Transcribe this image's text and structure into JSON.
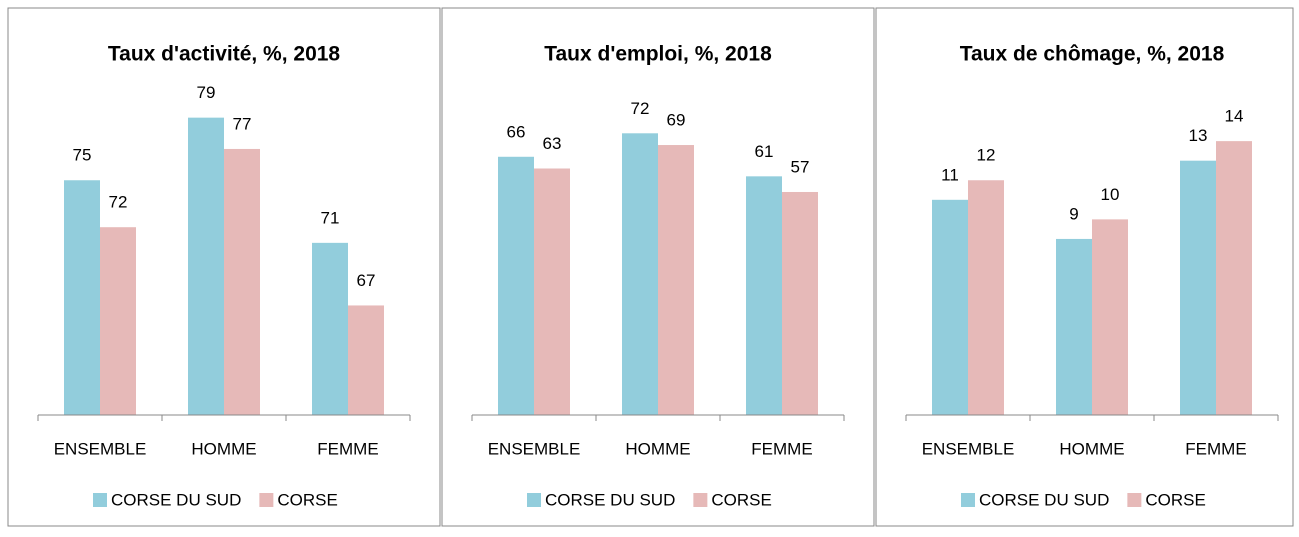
{
  "chart_data": [
    {
      "type": "bar",
      "title": "Taux d'activité, %, 2018",
      "categories": [
        "ENSEMBLE",
        "HOMME",
        "FEMME"
      ],
      "series": [
        {
          "name": "CORSE DU SUD",
          "color": "#92cddc",
          "values": [
            75,
            79,
            71
          ]
        },
        {
          "name": "CORSE",
          "color": "#e6b9b8",
          "values": [
            72,
            77,
            67
          ]
        }
      ],
      "ylim": [
        60,
        80
      ]
    },
    {
      "type": "bar",
      "title": "Taux d'emploi, %, 2018",
      "categories": [
        "ENSEMBLE",
        "HOMME",
        "FEMME"
      ],
      "series": [
        {
          "name": "CORSE DU SUD",
          "color": "#92cddc",
          "values": [
            66,
            72,
            61
          ]
        },
        {
          "name": "CORSE",
          "color": "#e6b9b8",
          "values": [
            63,
            69,
            57
          ]
        }
      ],
      "ylim": [
        0,
        80
      ]
    },
    {
      "type": "bar",
      "title": "Taux de chômage, %, 2018",
      "categories": [
        "ENSEMBLE",
        "HOMME",
        "FEMME"
      ],
      "series": [
        {
          "name": "CORSE DU SUD",
          "color": "#92cddc",
          "values": [
            11,
            9,
            13
          ]
        },
        {
          "name": "CORSE",
          "color": "#e6b9b8",
          "values": [
            12,
            10,
            14
          ]
        }
      ],
      "ylim": [
        0,
        16
      ]
    }
  ]
}
